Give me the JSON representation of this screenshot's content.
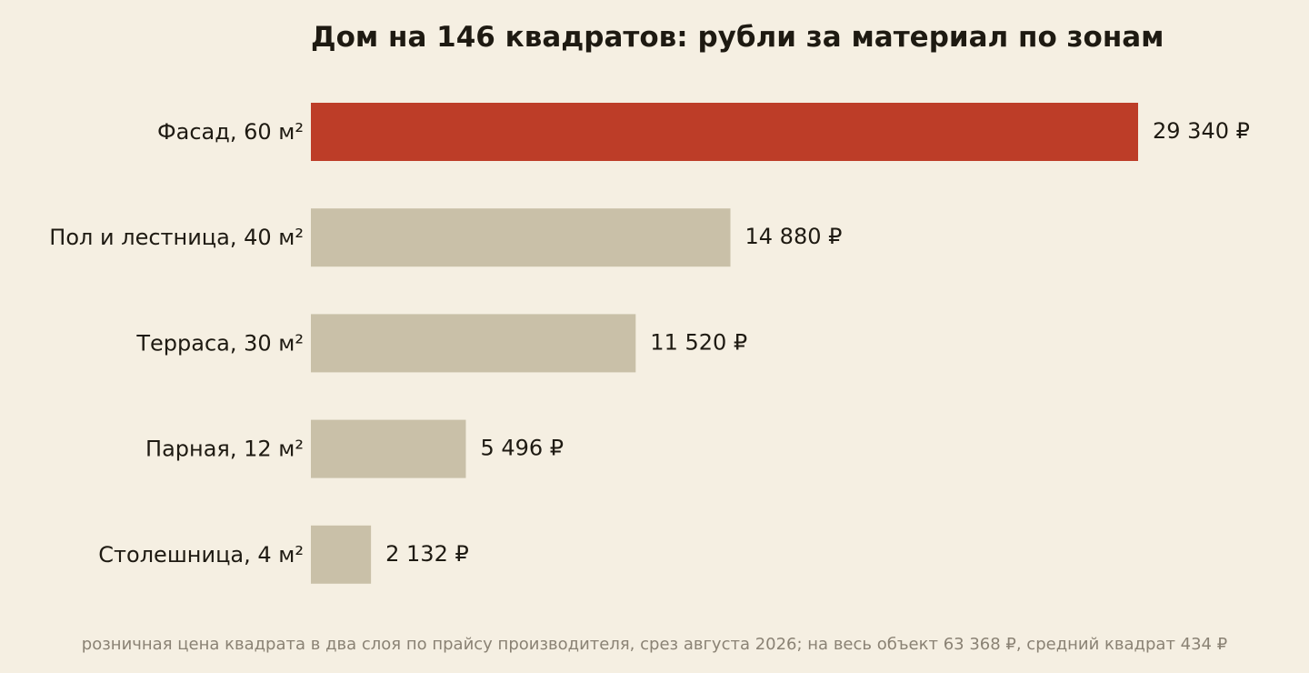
{
  "chart_data": {
    "type": "bar",
    "orientation": "horizontal",
    "title": "Дом на 146 квадратов: рубли за материал по зонам",
    "categories": [
      "Фасад, 60 м²",
      "Пол и лестница, 40 м²",
      "Терраса, 30 м²",
      "Парная, 12 м²",
      "Столешница, 4 м²"
    ],
    "values": [
      29340,
      14880,
      11520,
      5496,
      2132
    ],
    "value_labels": [
      "29 340 ₽",
      "14 880 ₽",
      "11 520 ₽",
      "5 496 ₽",
      "2 132 ₽"
    ],
    "xlabel": "",
    "ylabel": "",
    "xlim": [
      0,
      29340
    ],
    "grid": false,
    "legend": "none",
    "highlight_index": 0,
    "colors": {
      "highlight": "#bd3d28",
      "bar": "#c9c0a8",
      "background": "#f5efe2",
      "text": "#1e1a12",
      "footnote": "#8a8274"
    },
    "footnote": "розничная цена квадрата в два слоя по прайсу производителя, срез августа 2026; на весь объект 63 368 ₽, средний квадрат 434 ₽"
  }
}
